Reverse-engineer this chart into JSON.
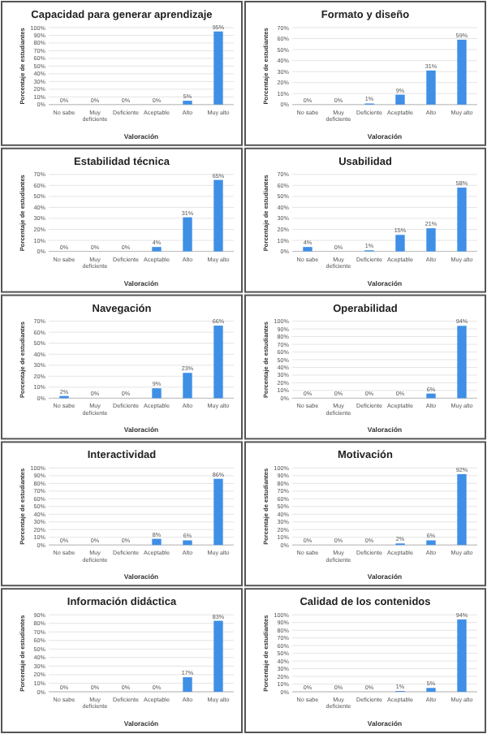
{
  "chart_data": [
    {
      "type": "bar",
      "title": "Capacidad para generar aprendizaje",
      "xlabel": "Valoración",
      "ylabel": "Porcentaje de estudiantes",
      "categories": [
        "No sabe",
        "Muy deficiente",
        "Deficiente",
        "Aceptable",
        "Alto",
        "Muy alto"
      ],
      "values": [
        0,
        0,
        0,
        0,
        5,
        95
      ],
      "value_labels": [
        "0%",
        "0%",
        "0%",
        "0%",
        "5%",
        "95%"
      ],
      "color": "#3f8fe6",
      "ylim": [
        0,
        100
      ],
      "yticks": [
        {
          "value": 0,
          "label": "0%"
        },
        {
          "value": 10,
          "label": "10%"
        },
        {
          "value": 20,
          "label": "20%"
        },
        {
          "value": 30,
          "label": "30%"
        },
        {
          "value": 40,
          "label": "40%"
        },
        {
          "value": 50,
          "label": "50%"
        },
        {
          "value": 60,
          "label": "60%"
        },
        {
          "value": 70,
          "label": "70%"
        },
        {
          "value": 80,
          "label": "80%"
        },
        {
          "value": 90,
          "label": "90%"
        },
        {
          "value": 100,
          "label": "100%"
        }
      ],
      "grid": "y"
    },
    {
      "type": "bar",
      "title": "Formato y diseño",
      "xlabel": "Valoración",
      "ylabel": "Porcentaje de estudiantes",
      "categories": [
        "No sabe",
        "Muy deficiente",
        "Deficiente",
        "Aceptable",
        "Alto",
        "Muy alto"
      ],
      "values": [
        0,
        0,
        1,
        9,
        31,
        59
      ],
      "value_labels": [
        "0%",
        "0%",
        "1%",
        "9%",
        "31%",
        "59%"
      ],
      "color": "#3f8fe6",
      "ylim": [
        0,
        70
      ],
      "yticks": [
        {
          "value": 0,
          "label": "0%"
        },
        {
          "value": 10,
          "label": "10%"
        },
        {
          "value": 20,
          "label": "20%"
        },
        {
          "value": 30,
          "label": "30%"
        },
        {
          "value": 40,
          "label": "40%"
        },
        {
          "value": 50,
          "label": "50%"
        },
        {
          "value": 60,
          "label": "60%"
        },
        {
          "value": 70,
          "label": "70%"
        }
      ],
      "grid": "y"
    },
    {
      "type": "bar",
      "title": "Estabilidad técnica",
      "xlabel": "Valoración",
      "ylabel": "Porcentaje de estudiantes",
      "categories": [
        "No sabe",
        "Muy deficiente",
        "Deficiente",
        "Aceptable",
        "Alto",
        "Muy alto"
      ],
      "values": [
        0,
        0,
        0,
        4,
        31,
        65
      ],
      "value_labels": [
        "0%",
        "0%",
        "0%",
        "4%",
        "31%",
        "65%"
      ],
      "color": "#3f8fe6",
      "ylim": [
        0,
        70
      ],
      "yticks": [
        {
          "value": 0,
          "label": "0%"
        },
        {
          "value": 10,
          "label": "10%"
        },
        {
          "value": 20,
          "label": "20%"
        },
        {
          "value": 30,
          "label": "30%"
        },
        {
          "value": 40,
          "label": "40%"
        },
        {
          "value": 50,
          "label": "50%"
        },
        {
          "value": 60,
          "label": "60%"
        },
        {
          "value": 70,
          "label": "70%"
        }
      ],
      "grid": "y"
    },
    {
      "type": "bar",
      "title": "Usabilidad",
      "xlabel": "Valoración",
      "ylabel": "Porcentaje de estudiantes",
      "categories": [
        "No sabe",
        "Muy deficiente",
        "Deficiente",
        "Aceptable",
        "Alto",
        "Muy alto"
      ],
      "values": [
        4,
        0,
        1,
        15,
        21,
        58
      ],
      "value_labels": [
        "4%",
        "0%",
        "1%",
        "15%",
        "21%",
        "58%"
      ],
      "color": "#3f8fe6",
      "ylim": [
        0,
        70
      ],
      "yticks": [
        {
          "value": 0,
          "label": "0%"
        },
        {
          "value": 10,
          "label": "10%"
        },
        {
          "value": 20,
          "label": "20%"
        },
        {
          "value": 30,
          "label": "30%"
        },
        {
          "value": 40,
          "label": "40%"
        },
        {
          "value": 50,
          "label": "50%"
        },
        {
          "value": 60,
          "label": "60%"
        },
        {
          "value": 70,
          "label": "70%"
        }
      ],
      "grid": "y"
    },
    {
      "type": "bar",
      "title": "Navegación",
      "xlabel": "Valoración",
      "ylabel": "Porcentaje de estudiantes",
      "categories": [
        "No sabe",
        "Muy deficiente",
        "Deficiente",
        "Aceptable",
        "Alto",
        "Muy alto"
      ],
      "values": [
        2,
        0,
        0,
        9,
        23,
        66
      ],
      "value_labels": [
        "2%",
        "0%",
        "0%",
        "9%",
        "23%",
        "66%"
      ],
      "color": "#3f8fe6",
      "ylim": [
        0,
        70
      ],
      "yticks": [
        {
          "value": 0,
          "label": "0%"
        },
        {
          "value": 10,
          "label": "10%"
        },
        {
          "value": 20,
          "label": "20%"
        },
        {
          "value": 30,
          "label": "30%"
        },
        {
          "value": 40,
          "label": "40%"
        },
        {
          "value": 50,
          "label": "50%"
        },
        {
          "value": 60,
          "label": "60%"
        },
        {
          "value": 70,
          "label": "70%"
        }
      ],
      "grid": "y"
    },
    {
      "type": "bar",
      "title": "Operabilidad",
      "xlabel": "Valoración",
      "ylabel": "Porcentaje de estudiantes",
      "categories": [
        "No sabe",
        "Muy deficiente",
        "Deficiente",
        "Aceptable",
        "Alto",
        "Muy alto"
      ],
      "values": [
        0,
        0,
        0,
        0,
        6,
        94
      ],
      "value_labels": [
        "0%",
        "0%",
        "0%",
        "0%",
        "6%",
        "94%"
      ],
      "color": "#3f8fe6",
      "ylim": [
        0,
        100
      ],
      "yticks": [
        {
          "value": 0,
          "label": "0%"
        },
        {
          "value": 10,
          "label": "10%"
        },
        {
          "value": 20,
          "label": "20%"
        },
        {
          "value": 30,
          "label": "30%"
        },
        {
          "value": 40,
          "label": "40%"
        },
        {
          "value": 50,
          "label": "50%"
        },
        {
          "value": 60,
          "label": "60%"
        },
        {
          "value": 70,
          "label": "70%"
        },
        {
          "value": 80,
          "label": "80%"
        },
        {
          "value": 90,
          "label": "90%"
        },
        {
          "value": 100,
          "label": "100%"
        }
      ],
      "grid": "y"
    },
    {
      "type": "bar",
      "title": "Interactividad",
      "xlabel": "Valoración",
      "ylabel": "Porcentaje de estudiantes",
      "categories": [
        "No sabe",
        "Muy deficiente",
        "Deficiente",
        "Aceptable",
        "Alto",
        "Muy alto"
      ],
      "values": [
        0,
        0,
        0,
        8,
        6,
        86
      ],
      "value_labels": [
        "0%",
        "0%",
        "0%",
        "8%",
        "6%",
        "86%"
      ],
      "color": "#3f8fe6",
      "ylim": [
        0,
        100
      ],
      "yticks": [
        {
          "value": 0,
          "label": "0%"
        },
        {
          "value": 10,
          "label": "10%"
        },
        {
          "value": 20,
          "label": "20%"
        },
        {
          "value": 30,
          "label": "30%"
        },
        {
          "value": 40,
          "label": "40%"
        },
        {
          "value": 50,
          "label": "50%"
        },
        {
          "value": 60,
          "label": "60%"
        },
        {
          "value": 70,
          "label": "70%"
        },
        {
          "value": 80,
          "label": "80%"
        },
        {
          "value": 90,
          "label": "90%"
        },
        {
          "value": 100,
          "label": "100%"
        }
      ],
      "grid": "y"
    },
    {
      "type": "bar",
      "title": "Motivación",
      "xlabel": "Valoración",
      "ylabel": "Porcentaje de estudiantes",
      "categories": [
        "No sabe",
        "Muy deficiente",
        "Deficiente",
        "Aceptable",
        "Alto",
        "Muy alto"
      ],
      "values": [
        0,
        0,
        0,
        2,
        6,
        92
      ],
      "value_labels": [
        "0%",
        "0%",
        "0%",
        "2%",
        "6%",
        "92%"
      ],
      "color": "#3f8fe6",
      "ylim": [
        0,
        100
      ],
      "yticks": [
        {
          "value": 0,
          "label": "0%"
        },
        {
          "value": 10,
          "label": "10%"
        },
        {
          "value": 20,
          "label": "20%"
        },
        {
          "value": 30,
          "label": "30%"
        },
        {
          "value": 40,
          "label": "40%"
        },
        {
          "value": 50,
          "label": "50%"
        },
        {
          "value": 60,
          "label": "60%"
        },
        {
          "value": 70,
          "label": "70%"
        },
        {
          "value": 80,
          "label": "80%"
        },
        {
          "value": 90,
          "label": "90%"
        },
        {
          "value": 100,
          "label": "100%"
        }
      ],
      "grid": "y"
    },
    {
      "type": "bar",
      "title": "Información didáctica",
      "xlabel": "Valoración",
      "ylabel": "Porcentaje de estudiantes",
      "categories": [
        "No sabe",
        "Muy deficiente",
        "Deficiente",
        "Aceptable",
        "Alto",
        "Muy alto"
      ],
      "values": [
        0,
        0,
        0,
        0,
        17,
        83
      ],
      "value_labels": [
        "0%",
        "0%",
        "0%",
        "0%",
        "17%",
        "83%"
      ],
      "color": "#3f8fe6",
      "ylim": [
        0,
        90
      ],
      "yticks": [
        {
          "value": 0,
          "label": "0%"
        },
        {
          "value": 10,
          "label": "10%"
        },
        {
          "value": 20,
          "label": "20%"
        },
        {
          "value": 30,
          "label": "30%"
        },
        {
          "value": 40,
          "label": "40%"
        },
        {
          "value": 50,
          "label": "50%"
        },
        {
          "value": 60,
          "label": "60%"
        },
        {
          "value": 70,
          "label": "70%"
        },
        {
          "value": 80,
          "label": "80%"
        },
        {
          "value": 90,
          "label": "90%"
        }
      ],
      "grid": "y"
    },
    {
      "type": "bar",
      "title": "Calidad de los contenidos",
      "xlabel": "Valoración",
      "ylabel": "Porcentaje de estudiantes",
      "categories": [
        "No sabe",
        "Muy deficiente",
        "Deficiente",
        "Aceptable",
        "Alto",
        "Muy alto"
      ],
      "values": [
        0,
        0,
        0,
        1,
        5,
        94
      ],
      "value_labels": [
        "0%",
        "0%",
        "0%",
        "1%",
        "5%",
        "94%"
      ],
      "color": "#3f8fe6",
      "ylim": [
        0,
        100
      ],
      "yticks": [
        {
          "value": 0,
          "label": "0%"
        },
        {
          "value": 10,
          "label": "10%"
        },
        {
          "value": 20,
          "label": "20%"
        },
        {
          "value": 30,
          "label": "30%"
        },
        {
          "value": 40,
          "label": "40%"
        },
        {
          "value": 50,
          "label": "50%"
        },
        {
          "value": 60,
          "label": "60%"
        },
        {
          "value": 70,
          "label": "70%"
        },
        {
          "value": 80,
          "label": "80%"
        },
        {
          "value": 90,
          "label": "90%"
        },
        {
          "value": 100,
          "label": "100%"
        }
      ],
      "grid": "y"
    }
  ]
}
